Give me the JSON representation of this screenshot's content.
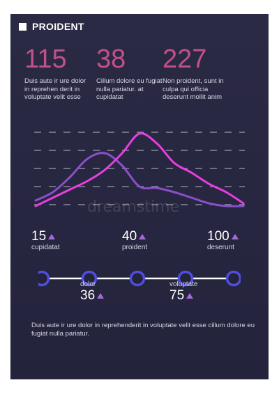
{
  "title": "PROIDENT",
  "stats": [
    {
      "value": "115",
      "description": "Duis aute ir ure dolor in reprehen derit in voluptate velit esse"
    },
    {
      "value": "38",
      "description": "Cillum dolore eu fugiat nulla pariatur.  at cupidatat"
    },
    {
      "value": "227",
      "description": "Non proident, sunt in culpa qui officia deserunt mollit anim"
    }
  ],
  "chart_data": {
    "type": "area",
    "series": [
      {
        "color": "#e83fe0",
        "values": [
          2,
          14,
          26,
          38,
          54,
          78,
          106,
          92,
          64,
          50,
          34,
          22,
          6
        ]
      },
      {
        "color": "#8a4fcb",
        "values": [
          10,
          22,
          44,
          70,
          78,
          60,
          30,
          28,
          22,
          14,
          6,
          2,
          2
        ]
      }
    ],
    "grid": true
  },
  "kpis_top": [
    {
      "value": "15",
      "label": "cupidatat"
    },
    {
      "value": "40",
      "label": "proident"
    },
    {
      "value": "100",
      "label": "deserunt"
    }
  ],
  "kpis_bottom": [
    {
      "value": "36",
      "label": "dolor"
    },
    {
      "value": "75",
      "label": "voluptate"
    }
  ],
  "footer": "Duis aute ir ure dolor in reprehenderit in voluptate velit esse cillum dolore eu fugiat nulla pariatur.",
  "watermark": "dreamstime",
  "colors": {
    "accent": "#c2508a",
    "timeline_node": "#4f4ee0",
    "triangle": "#a66ad6"
  }
}
